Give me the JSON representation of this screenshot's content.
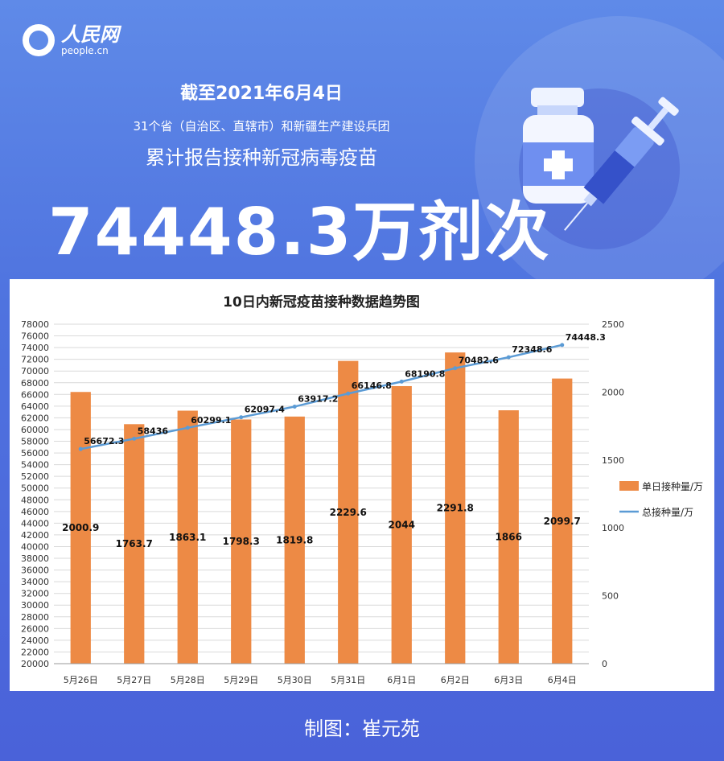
{
  "brand": {
    "name_cn": "人民网",
    "domain": "people.cn"
  },
  "headline": {
    "date_line": "截至2021年6月4日",
    "region_line": "31个省（自治区、直辖市）和新疆生产建设兵团",
    "desc_line": "累计报告接种新冠病毒疫苗",
    "big_number": "74448.3万剂次"
  },
  "credit": "制图：崔元苑",
  "colors": {
    "bar": "#ed8a45",
    "line": "#5b9bd5",
    "background": "#5279e2"
  },
  "chart_data": {
    "type": "bar",
    "title": "10日内新冠疫苗接种数据趋势图",
    "categories": [
      "5月26日",
      "5月27日",
      "5月28日",
      "5月29日",
      "5月30日",
      "5月31日",
      "6月1日",
      "6月2日",
      "6月3日",
      "6月4日"
    ],
    "series": [
      {
        "name": "单日接种量/万",
        "type": "bar",
        "axis": "right",
        "values": [
          2000.9,
          1763.7,
          1863.1,
          1798.3,
          1819.8,
          2229.6,
          2044,
          2291.8,
          1866,
          2099.7
        ],
        "labels": [
          "2000.9",
          "1763.7",
          "1863.1",
          "1798.3",
          "1819.8",
          "2229.6",
          "2044",
          "2291.8",
          "1866",
          "2099.7"
        ]
      },
      {
        "name": "总接种量/万",
        "type": "line",
        "axis": "left",
        "values": [
          56672.3,
          58436,
          60299.1,
          62097.4,
          63917.2,
          66146.8,
          68190.8,
          70482.6,
          72348.6,
          74448.3
        ],
        "labels": [
          "56672.3",
          "58436",
          "60299.1",
          "62097.4",
          "63917.2",
          "66146.8",
          "68190.8",
          "70482.6",
          "72348.6",
          "74448.3"
        ]
      }
    ],
    "ylim_left": [
      20000,
      78000
    ],
    "yticks_left": [
      "78000",
      "76000",
      "74000",
      "72000",
      "70000",
      "68000",
      "66000",
      "64000",
      "62000",
      "60000",
      "58000",
      "56000",
      "54000",
      "52000",
      "50000",
      "48000",
      "46000",
      "44000",
      "42000",
      "40000",
      "38000",
      "36000",
      "34000",
      "32000",
      "30000",
      "28000",
      "26000",
      "24000",
      "22000",
      "20000"
    ],
    "ylim_right": [
      0,
      2500
    ],
    "yticks_right": [
      "2500",
      "2000",
      "1500",
      "1000",
      "500",
      "0"
    ],
    "grid": true,
    "legend_position": "right"
  }
}
